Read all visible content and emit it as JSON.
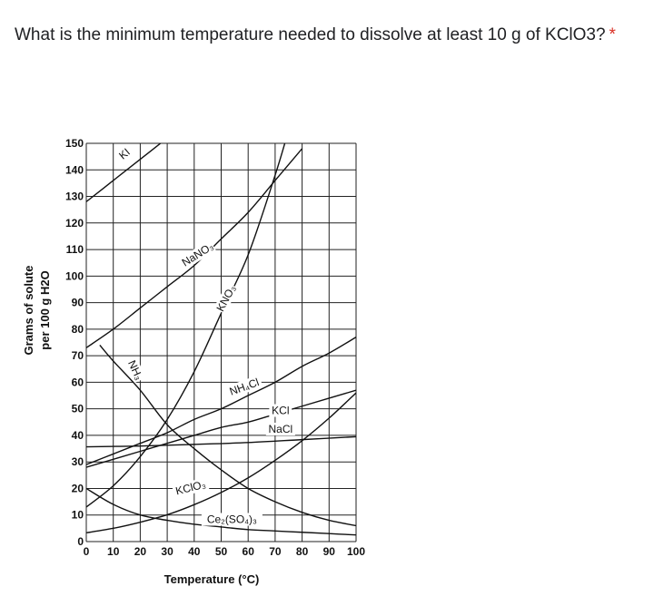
{
  "question": {
    "text": "What is the minimum temperature needed to dissolve at least 10 g of KClO3?",
    "required_marker": "*"
  },
  "chart_data": {
    "type": "line",
    "xlabel": "Temperature (°C)",
    "ylabel_line1": "Grams of solute",
    "ylabel_line2": "per 100 g H2O",
    "xlim": [
      0,
      100
    ],
    "ylim": [
      0,
      150
    ],
    "x_ticks": [
      0,
      10,
      20,
      30,
      40,
      50,
      60,
      70,
      80,
      90,
      100
    ],
    "y_ticks": [
      0,
      10,
      20,
      30,
      40,
      50,
      60,
      70,
      80,
      90,
      100,
      110,
      120,
      130,
      140,
      150
    ],
    "grid": true,
    "series": [
      {
        "name": "KI",
        "label_text": "KI",
        "label_at": [
          15,
          145
        ],
        "label_angle": -40,
        "points": [
          [
            0,
            128
          ],
          [
            10,
            136
          ],
          [
            20,
            144
          ],
          [
            30,
            152
          ]
        ]
      },
      {
        "name": "NaNO3",
        "label_text": "NaNO₃",
        "label_at": [
          42,
          107
        ],
        "label_angle": -32,
        "points": [
          [
            0,
            73
          ],
          [
            10,
            80
          ],
          [
            20,
            88
          ],
          [
            30,
            96
          ],
          [
            40,
            104
          ],
          [
            50,
            114
          ],
          [
            60,
            124
          ],
          [
            70,
            136
          ],
          [
            80,
            148
          ]
        ]
      },
      {
        "name": "KNO3",
        "label_text": "KNO₃",
        "label_at": [
          53,
          91
        ],
        "label_angle": -62,
        "points": [
          [
            0,
            13
          ],
          [
            10,
            21
          ],
          [
            20,
            32
          ],
          [
            30,
            46
          ],
          [
            40,
            64
          ],
          [
            50,
            86
          ],
          [
            60,
            108
          ],
          [
            70,
            138
          ],
          [
            75,
            155
          ]
        ]
      },
      {
        "name": "NH3",
        "label_text": "NH₃",
        "label_at": [
          17,
          64
        ],
        "label_angle": 65,
        "points": [
          [
            5,
            74
          ],
          [
            10,
            68
          ],
          [
            20,
            57
          ],
          [
            30,
            44
          ],
          [
            40,
            35
          ],
          [
            50,
            27
          ],
          [
            60,
            20
          ],
          [
            70,
            15
          ],
          [
            80,
            11
          ],
          [
            90,
            8
          ],
          [
            100,
            6
          ]
        ]
      },
      {
        "name": "NH4Cl",
        "label_text": "NH₄Cl",
        "label_at": [
          59,
          57
        ],
        "label_angle": -20,
        "points": [
          [
            0,
            29
          ],
          [
            10,
            33
          ],
          [
            20,
            37
          ],
          [
            30,
            41
          ],
          [
            40,
            46
          ],
          [
            50,
            50
          ],
          [
            60,
            55
          ],
          [
            70,
            60
          ],
          [
            80,
            66
          ],
          [
            90,
            71
          ],
          [
            100,
            77
          ]
        ]
      },
      {
        "name": "KCl",
        "label_text": "KCl",
        "label_at": [
          72,
          48
        ],
        "label_angle": 0,
        "points": [
          [
            0,
            28
          ],
          [
            10,
            31
          ],
          [
            20,
            34
          ],
          [
            30,
            37
          ],
          [
            40,
            40
          ],
          [
            50,
            43
          ],
          [
            60,
            45
          ],
          [
            70,
            48
          ],
          [
            80,
            51
          ],
          [
            90,
            54
          ],
          [
            100,
            57
          ]
        ]
      },
      {
        "name": "NaCl",
        "label_text": "NaCl",
        "label_at": [
          72,
          41
        ],
        "label_angle": 0,
        "points": [
          [
            0,
            35.7
          ],
          [
            20,
            36
          ],
          [
            40,
            36.6
          ],
          [
            60,
            37.3
          ],
          [
            80,
            38.4
          ],
          [
            100,
            39.5
          ]
        ]
      },
      {
        "name": "KClO3",
        "label_text": "KClO₃",
        "label_at": [
          39,
          19
        ],
        "label_angle": -14,
        "points": [
          [
            0,
            3.3
          ],
          [
            10,
            5
          ],
          [
            20,
            7.3
          ],
          [
            30,
            10.1
          ],
          [
            40,
            13.9
          ],
          [
            50,
            18.5
          ],
          [
            60,
            24
          ],
          [
            70,
            30.6
          ],
          [
            80,
            38
          ],
          [
            90,
            46.5
          ],
          [
            100,
            56
          ]
        ]
      },
      {
        "name": "Ce2(SO4)3",
        "label_text": "Ce₂(SO₄)₃",
        "label_at": [
          54,
          7
        ],
        "label_angle": 0,
        "points": [
          [
            0,
            20
          ],
          [
            10,
            14
          ],
          [
            20,
            10
          ],
          [
            30,
            8
          ],
          [
            40,
            6.5
          ],
          [
            50,
            5.5
          ],
          [
            60,
            4.5
          ],
          [
            70,
            4
          ],
          [
            80,
            3.5
          ],
          [
            90,
            3
          ],
          [
            100,
            2.5
          ]
        ]
      }
    ]
  }
}
